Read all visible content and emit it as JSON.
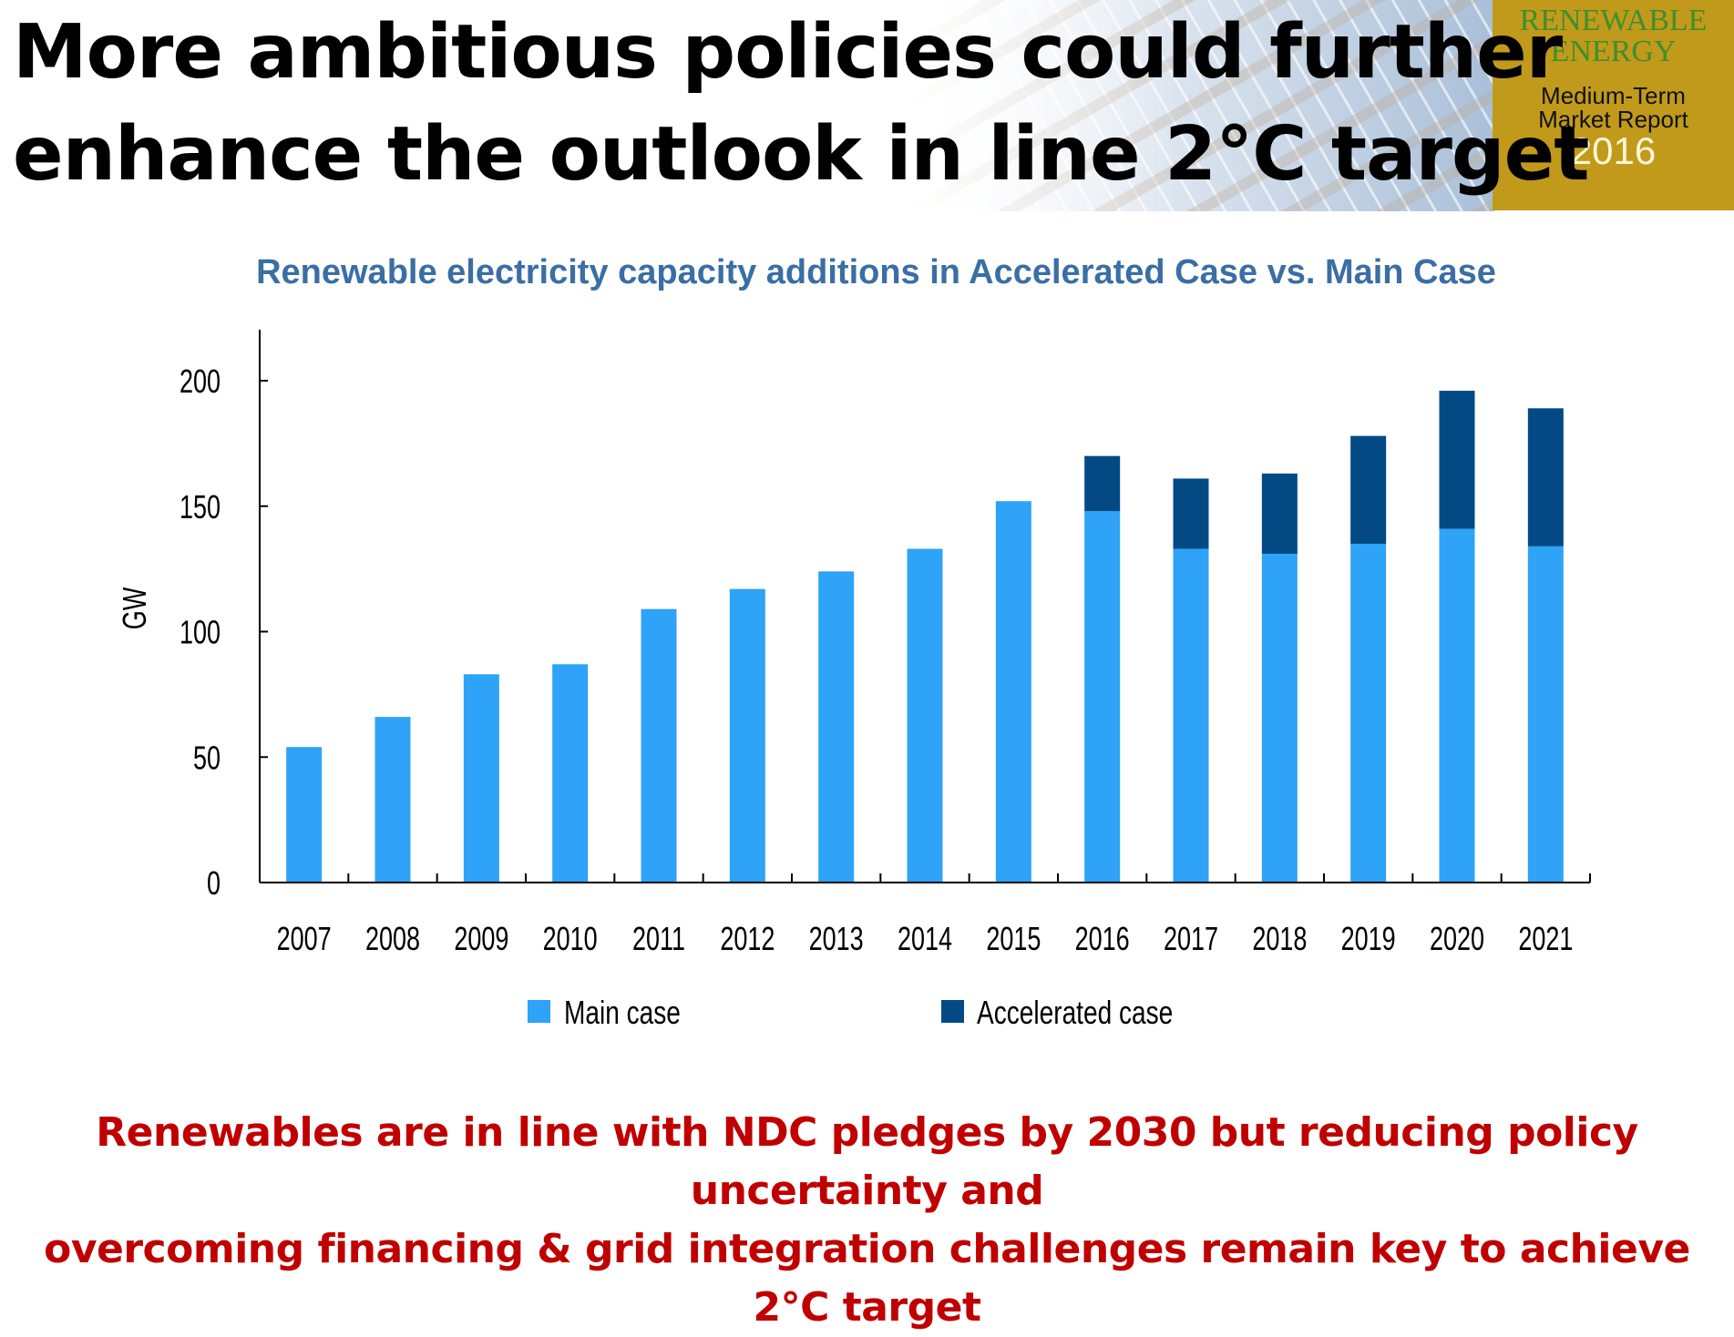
{
  "title_lines": [
    "More ambitious policies could further",
    "enhance the outlook in line 2°C target"
  ],
  "logo": {
    "line1": "RENEWABLE",
    "line2": "ENERGY",
    "line3": "Medium-Term",
    "line4": "Market Report",
    "year": "2016"
  },
  "footer_lines": [
    "Renewables are in line with NDC pledges by 2030 but reducing policy uncertainty and",
    "overcoming financing & grid integration challenges remain key to achieve 2°C target"
  ],
  "colors": {
    "main": "#2ea3f7",
    "accelerated": "#034a85",
    "title_blue": "#3a6ea5",
    "footer_red": "#c00000",
    "logo_bg": "#c19a1c"
  },
  "chart_data": {
    "type": "bar",
    "stacked": true,
    "title": "Renewable electricity capacity  additions in Accelerated Case vs. Main Case",
    "xlabel": "",
    "ylabel": "GW",
    "ylim": [
      0,
      220
    ],
    "yticks": [
      0,
      50,
      100,
      150,
      200
    ],
    "categories": [
      "2007",
      "2008",
      "2009",
      "2010",
      "2011",
      "2012",
      "2013",
      "2014",
      "2015",
      "2016",
      "2017",
      "2018",
      "2019",
      "2020",
      "2021"
    ],
    "series": [
      {
        "name": "Main case",
        "values": [
          54,
          66,
          83,
          87,
          109,
          117,
          124,
          133,
          152,
          148,
          133,
          131,
          135,
          141,
          134
        ]
      },
      {
        "name": "Accelerated case",
        "values": [
          0,
          0,
          0,
          0,
          0,
          0,
          0,
          0,
          0,
          22,
          28,
          32,
          43,
          55,
          55
        ]
      }
    ],
    "legend": "bottom",
    "grid": false
  }
}
